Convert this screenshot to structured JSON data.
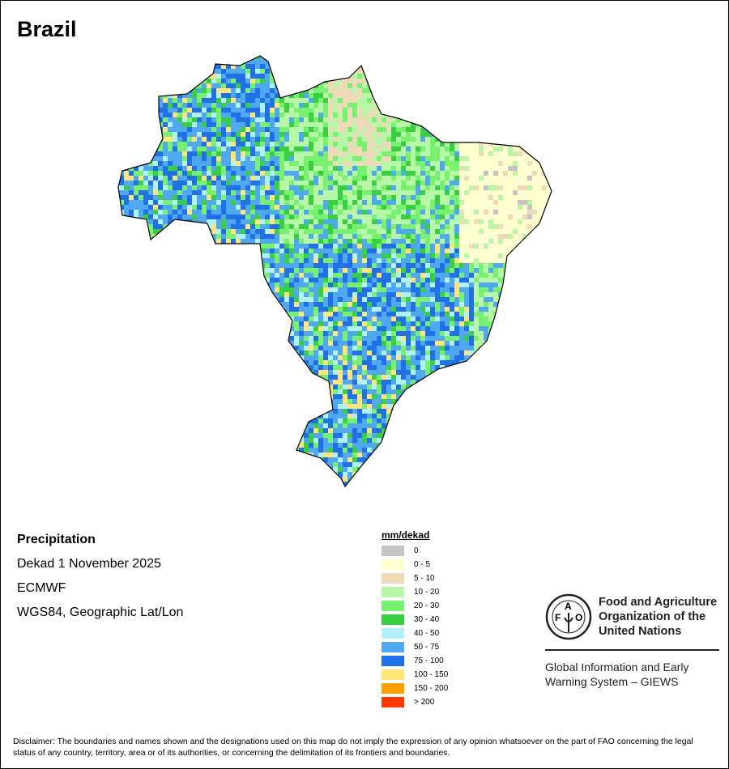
{
  "title": "Brazil",
  "info": {
    "variable": "Precipitation",
    "period": "Dekad 1 November 2025",
    "source": "ECMWF",
    "projection": "WGS84, Geographic Lat/Lon"
  },
  "legend": {
    "title": "mm/dekad",
    "items": [
      {
        "label": "0",
        "color": "#c4c4c4"
      },
      {
        "label": "0 - 5",
        "color": "#ffffd0"
      },
      {
        "label": "5 - 10",
        "color": "#eed9b8"
      },
      {
        "label": "10 - 20",
        "color": "#b8f7a8"
      },
      {
        "label": "20 - 30",
        "color": "#78f070"
      },
      {
        "label": "30 - 40",
        "color": "#38d040"
      },
      {
        "label": "40 - 50",
        "color": "#b4f0f8"
      },
      {
        "label": "50 - 75",
        "color": "#50a8f0"
      },
      {
        "label": "75 - 100",
        "color": "#2070e8"
      },
      {
        "label": "100 - 150",
        "color": "#ffe478"
      },
      {
        "label": "150 - 200",
        "color": "#ffa000"
      },
      {
        "label": "> 200",
        "color": "#ff3800"
      }
    ]
  },
  "fao": {
    "logo_text": "FAO FIAT PANIS",
    "name": "Food and Agriculture Organization of the United Nations",
    "system": "Global Information and Early Warning System – GIEWS"
  },
  "disclaimer": "Disclaimer: The boundaries and names shown and the designations used on this map do not imply the expression of any opinion whatsoever on the part of FAO concerning the legal status of any country, territory, area or of its authorities, or concerning the delimitation of its frontiers and boundaries."
}
